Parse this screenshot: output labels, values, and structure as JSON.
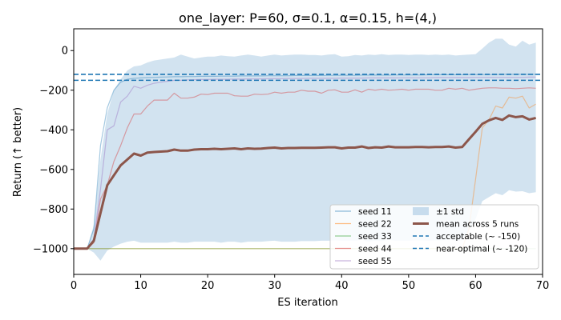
{
  "chart_data": {
    "type": "line",
    "title": "one_layer: P=60, σ=0.1, α=0.15, h=(4,)",
    "xlabel": "ES iteration",
    "ylabel": "Return (↑ better)",
    "xlim": [
      0,
      70
    ],
    "ylim": [
      -1130,
      110
    ],
    "xticks": [
      0,
      10,
      20,
      30,
      40,
      50,
      60,
      70
    ],
    "yticks": [
      0,
      -200,
      -400,
      -600,
      -800,
      -1000
    ],
    "xtick_labels": [
      "0",
      "10",
      "20",
      "30",
      "40",
      "50",
      "60",
      "70"
    ],
    "ytick_labels": [
      "0",
      "−200",
      "−400",
      "−600",
      "−800",
      "−1000"
    ],
    "legend_position": "lower-right",
    "series": [
      {
        "name": "seed 11",
        "color": "#1f77b4",
        "x": [
          0,
          1,
          2,
          3,
          4,
          5,
          6,
          7,
          8,
          9,
          10,
          11,
          12,
          13,
          14,
          15,
          16,
          17,
          18,
          19,
          20,
          21,
          22,
          23,
          24,
          25,
          26,
          27,
          28,
          29,
          30,
          31,
          32,
          33,
          34,
          35,
          36,
          37,
          38,
          39,
          40,
          41,
          42,
          43,
          44,
          45,
          46,
          47,
          48,
          49,
          50,
          51,
          52,
          53,
          54,
          55,
          56,
          57,
          58,
          59,
          60,
          61,
          62,
          63,
          64,
          65,
          66,
          67,
          68,
          69
        ],
        "y": [
          -1000,
          -1000,
          -1000,
          -900,
          -480,
          -290,
          -200,
          -160,
          -145,
          -140,
          -138,
          -136,
          -135,
          -134,
          -133,
          -132,
          -132,
          -131,
          -131,
          -130,
          -130,
          -130,
          -129,
          -129,
          -129,
          -128,
          -128,
          -128,
          -128,
          -127,
          -127,
          -127,
          -127,
          -126,
          -126,
          -126,
          -126,
          -126,
          -125,
          -125,
          -125,
          -125,
          -125,
          -124,
          -124,
          -124,
          -124,
          -124,
          -123,
          -123,
          -123,
          -123,
          -123,
          -122,
          -122,
          -122,
          -122,
          -122,
          -122,
          -121,
          -121,
          -121,
          -121,
          -121,
          -120,
          -120,
          -120,
          -120,
          -120,
          -120
        ]
      },
      {
        "name": "seed 22",
        "color": "#ff7f0e",
        "x": [
          0,
          1,
          2,
          3,
          4,
          5,
          6,
          7,
          8,
          9,
          10,
          11,
          12,
          13,
          14,
          15,
          16,
          17,
          18,
          19,
          20,
          21,
          22,
          23,
          24,
          25,
          26,
          27,
          28,
          29,
          30,
          31,
          32,
          33,
          34,
          35,
          36,
          37,
          38,
          39,
          40,
          41,
          42,
          43,
          44,
          45,
          46,
          47,
          48,
          49,
          50,
          51,
          52,
          53,
          54,
          55,
          56,
          57,
          58,
          59,
          60,
          61,
          62,
          63,
          64,
          65,
          66,
          67,
          68,
          69
        ],
        "y": [
          -1000,
          -1000,
          -1000,
          -1000,
          -1000,
          -1000,
          -1000,
          -1000,
          -1000,
          -1000,
          -1000,
          -1000,
          -1000,
          -1000,
          -1000,
          -1000,
          -1000,
          -1000,
          -1000,
          -1000,
          -1000,
          -1000,
          -1000,
          -1000,
          -1000,
          -1000,
          -1000,
          -1000,
          -1000,
          -1000,
          -1000,
          -1000,
          -1000,
          -1000,
          -1000,
          -1000,
          -1000,
          -1000,
          -1000,
          -1000,
          -1000,
          -1000,
          -1000,
          -1000,
          -1000,
          -1000,
          -1000,
          -1000,
          -1000,
          -1000,
          -1000,
          -1000,
          -1000,
          -1000,
          -1000,
          -1000,
          -1000,
          -1000,
          -1000,
          -900,
          -650,
          -390,
          -350,
          -280,
          -290,
          -235,
          -240,
          -230,
          -290,
          -270
        ]
      },
      {
        "name": "seed 33",
        "color": "#2ca02c",
        "x": [
          0,
          1,
          2,
          3,
          4,
          5,
          6,
          7,
          8,
          9,
          10,
          11,
          12,
          13,
          14,
          15,
          16,
          17,
          18,
          19,
          20,
          21,
          22,
          23,
          24,
          25,
          26,
          27,
          28,
          29,
          30,
          31,
          32,
          33,
          34,
          35,
          36,
          37,
          38,
          39,
          40,
          41,
          42,
          43,
          44,
          45,
          46,
          47,
          48,
          49,
          50,
          51,
          52,
          53,
          54,
          55,
          56,
          57,
          58,
          59,
          60,
          61,
          62,
          63,
          64,
          65,
          66,
          67,
          68,
          69
        ],
        "y": [
          -1000,
          -1000,
          -1000,
          -1000,
          -1000,
          -1000,
          -1000,
          -1000,
          -1000,
          -1000,
          -1000,
          -1000,
          -1000,
          -1000,
          -1000,
          -1000,
          -1000,
          -1000,
          -1000,
          -1000,
          -1000,
          -1000,
          -1000,
          -1000,
          -1000,
          -1000,
          -1000,
          -1000,
          -1000,
          -1000,
          -1000,
          -1000,
          -1000,
          -1000,
          -1000,
          -1000,
          -1000,
          -1000,
          -1000,
          -1000,
          -1000,
          -1000,
          -1000,
          -1000,
          -1000,
          -1000,
          -1000,
          -1000,
          -1000,
          -1000,
          -1000,
          -1000,
          -1000,
          -1000,
          -1000,
          -1000,
          -1000,
          -1000,
          -1000,
          -1000,
          -1000,
          -1000,
          -1000,
          -1000,
          -1000,
          -1000,
          -1000,
          -1000,
          -1000,
          -1000
        ]
      },
      {
        "name": "seed 44",
        "color": "#d62728",
        "x": [
          0,
          1,
          2,
          3,
          4,
          5,
          6,
          7,
          8,
          9,
          10,
          11,
          12,
          13,
          14,
          15,
          16,
          17,
          18,
          19,
          20,
          21,
          22,
          23,
          24,
          25,
          26,
          27,
          28,
          29,
          30,
          31,
          32,
          33,
          34,
          35,
          36,
          37,
          38,
          39,
          40,
          41,
          42,
          43,
          44,
          45,
          46,
          47,
          48,
          49,
          50,
          51,
          52,
          53,
          54,
          55,
          56,
          57,
          58,
          59,
          60,
          61,
          62,
          63,
          64,
          65,
          66,
          67,
          68,
          69
        ],
        "y": [
          -1000,
          -1000,
          -1000,
          -970,
          -750,
          -680,
          -560,
          -480,
          -390,
          -320,
          -320,
          -280,
          -250,
          -250,
          -250,
          -215,
          -240,
          -240,
          -235,
          -220,
          -222,
          -215,
          -215,
          -215,
          -228,
          -230,
          -230,
          -220,
          -222,
          -220,
          -210,
          -215,
          -210,
          -210,
          -200,
          -205,
          -205,
          -215,
          -200,
          -198,
          -210,
          -210,
          -198,
          -210,
          -195,
          -200,
          -195,
          -200,
          -198,
          -195,
          -200,
          -195,
          -195,
          -195,
          -200,
          -200,
          -190,
          -195,
          -190,
          -200,
          -195,
          -190,
          -188,
          -188,
          -190,
          -190,
          -192,
          -190,
          -188,
          -190
        ]
      },
      {
        "name": "seed 55",
        "color": "#9467bd",
        "x": [
          0,
          1,
          2,
          3,
          4,
          5,
          6,
          7,
          8,
          9,
          10,
          11,
          12,
          13,
          14,
          15,
          16,
          17,
          18,
          19,
          20,
          21,
          22,
          23,
          24,
          25,
          26,
          27,
          28,
          29,
          30,
          31,
          32,
          33,
          34,
          35,
          36,
          37,
          38,
          39,
          40,
          41,
          42,
          43,
          44,
          45,
          46,
          47,
          48,
          49,
          50,
          51,
          52,
          53,
          54,
          55,
          56,
          57,
          58,
          59,
          60,
          61,
          62,
          63,
          64,
          65,
          66,
          67,
          68,
          69
        ],
        "y": [
          -1000,
          -1000,
          -1000,
          -950,
          -700,
          -400,
          -380,
          -260,
          -230,
          -180,
          -190,
          -175,
          -165,
          -160,
          -155,
          -150,
          -150,
          -148,
          -147,
          -146,
          -146,
          -145,
          -145,
          -145,
          -144,
          -144,
          -143,
          -143,
          -143,
          -142,
          -142,
          -142,
          -141,
          -141,
          -141,
          -140,
          -140,
          -140,
          -140,
          -140,
          -139,
          -139,
          -139,
          -139,
          -138,
          -138,
          -138,
          -138,
          -138,
          -137,
          -137,
          -137,
          -137,
          -137,
          -136,
          -136,
          -136,
          -136,
          -136,
          -136,
          -135,
          -135,
          -135,
          -135,
          -135,
          -135,
          -135,
          -135,
          -134,
          -134
        ]
      },
      {
        "name": "mean across 5 runs",
        "color": "#8c564b",
        "x": [
          0,
          1,
          2,
          3,
          4,
          5,
          6,
          7,
          8,
          9,
          10,
          11,
          12,
          13,
          14,
          15,
          16,
          17,
          18,
          19,
          20,
          21,
          22,
          23,
          24,
          25,
          26,
          27,
          28,
          29,
          30,
          31,
          32,
          33,
          34,
          35,
          36,
          37,
          38,
          39,
          40,
          41,
          42,
          43,
          44,
          45,
          46,
          47,
          48,
          49,
          50,
          51,
          52,
          53,
          54,
          55,
          56,
          57,
          58,
          59,
          60,
          61,
          62,
          63,
          64,
          65,
          66,
          67,
          68,
          69
        ],
        "y": [
          -1000,
          -1000,
          -1000,
          -960,
          -820,
          -680,
          -630,
          -580,
          -550,
          -520,
          -530,
          -515,
          -512,
          -510,
          -508,
          -500,
          -505,
          -505,
          -500,
          -498,
          -498,
          -496,
          -498,
          -496,
          -494,
          -498,
          -494,
          -496,
          -495,
          -492,
          -490,
          -494,
          -492,
          -492,
          -491,
          -491,
          -491,
          -490,
          -488,
          -488,
          -494,
          -490,
          -490,
          -484,
          -492,
          -488,
          -490,
          -484,
          -488,
          -488,
          -488,
          -487,
          -487,
          -488,
          -487,
          -487,
          -484,
          -490,
          -487,
          -448,
          -410,
          -370,
          -352,
          -340,
          -350,
          -328,
          -336,
          -332,
          -348,
          -340
        ]
      }
    ],
    "band": {
      "name": "±1 std",
      "color": "#a6c8e2",
      "x": [
        0,
        1,
        2,
        3,
        4,
        5,
        6,
        7,
        8,
        9,
        10,
        11,
        12,
        13,
        14,
        15,
        16,
        17,
        18,
        19,
        20,
        21,
        22,
        23,
        24,
        25,
        26,
        27,
        28,
        29,
        30,
        31,
        32,
        33,
        34,
        35,
        36,
        37,
        38,
        39,
        40,
        41,
        42,
        43,
        44,
        45,
        46,
        47,
        48,
        49,
        50,
        51,
        52,
        53,
        54,
        55,
        56,
        57,
        58,
        59,
        60,
        61,
        62,
        63,
        64,
        65,
        66,
        67,
        68,
        69
      ],
      "upper": [
        -1000,
        -1000,
        -1000,
        -880,
        -550,
        -320,
        -200,
        -145,
        -100,
        -80,
        -75,
        -60,
        -50,
        -45,
        -40,
        -35,
        -20,
        -30,
        -40,
        -35,
        -30,
        -30,
        -25,
        -28,
        -30,
        -25,
        -20,
        -25,
        -30,
        -25,
        -20,
        -25,
        -22,
        -20,
        -20,
        -22,
        -22,
        -25,
        -20,
        -18,
        -30,
        -28,
        -22,
        -25,
        -20,
        -22,
        -18,
        -22,
        -20,
        -20,
        -22,
        -20,
        -20,
        -22,
        -20,
        -22,
        -20,
        -25,
        -22,
        -20,
        -18,
        10,
        40,
        60,
        60,
        30,
        20,
        50,
        30,
        40
      ],
      "lower": [
        -1000,
        -1000,
        -1000,
        -1020,
        -1060,
        -1010,
        -990,
        -975,
        -965,
        -960,
        -970,
        -970,
        -970,
        -970,
        -970,
        -965,
        -970,
        -970,
        -965,
        -965,
        -965,
        -965,
        -970,
        -965,
        -965,
        -970,
        -965,
        -965,
        -965,
        -962,
        -960,
        -965,
        -965,
        -965,
        -962,
        -962,
        -962,
        -960,
        -960,
        -958,
        -960,
        -960,
        -960,
        -955,
        -965,
        -960,
        -962,
        -955,
        -960,
        -960,
        -960,
        -958,
        -958,
        -960,
        -958,
        -958,
        -955,
        -960,
        -958,
        -910,
        -850,
        -760,
        -740,
        -720,
        -730,
        -705,
        -712,
        -710,
        -720,
        -715
      ]
    },
    "reference_lines": [
      {
        "name": "acceptable (~ -150)",
        "y": -150,
        "color": "#1f77b4"
      },
      {
        "name": "near-optimal (~ -120)",
        "y": -120,
        "color": "#1f77b4"
      }
    ]
  }
}
